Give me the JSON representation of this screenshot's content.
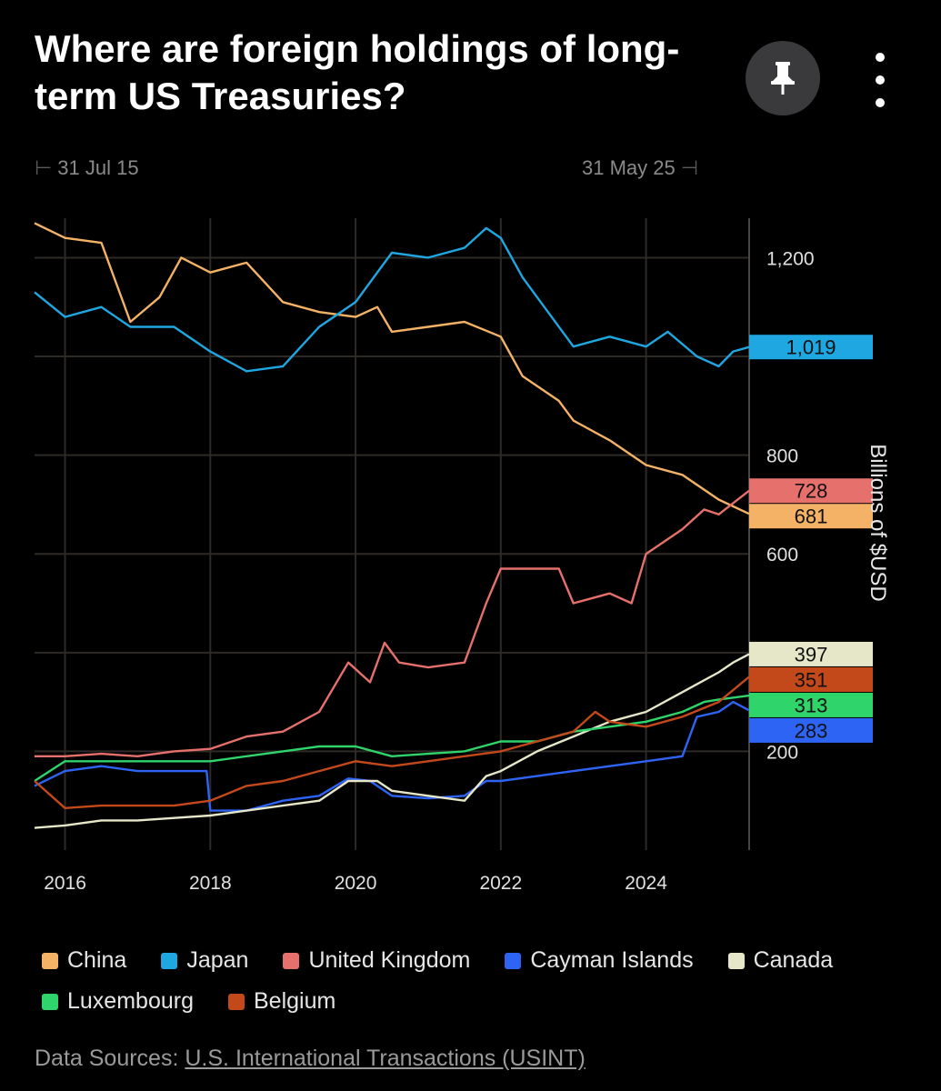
{
  "header": {
    "title": "Where are foreign holdings of long-term US Treasuries?",
    "pin_icon": "pin-icon",
    "more_icon": "more-vertical-icon"
  },
  "range": {
    "start": "31 Jul 15",
    "end": "31 May 25"
  },
  "source": {
    "label": "Data Sources:",
    "link_text": "U.S. International Transactions (USINT)"
  },
  "colors": {
    "background": "#000000",
    "grid": "#2e2a26",
    "axis_text": "#e0e0e0"
  },
  "chart_data": {
    "type": "line",
    "title": "Where are foreign holdings of long-term US Treasuries?",
    "xlabel": "",
    "ylabel": "Billions of $USD",
    "xlim": [
      2015.58,
      2025.42
    ],
    "ylim": [
      0,
      1280
    ],
    "x_ticks": [
      2016,
      2018,
      2020,
      2022,
      2024
    ],
    "x_tick_labels": [
      "2016",
      "2018",
      "2020",
      "2022",
      "2024"
    ],
    "y_ticks": [
      200,
      400,
      600,
      800,
      1000,
      1200
    ],
    "y_tick_labels": [
      "200",
      "",
      "600",
      "800",
      "",
      "1,200"
    ],
    "grid": true,
    "legend_position": "bottom",
    "series": [
      {
        "name": "China",
        "color": "#f4b266",
        "last_value": "681",
        "points": [
          [
            2015.58,
            1270
          ],
          [
            2016.0,
            1240
          ],
          [
            2016.5,
            1230
          ],
          [
            2016.9,
            1070
          ],
          [
            2017.3,
            1120
          ],
          [
            2017.6,
            1200
          ],
          [
            2018.0,
            1170
          ],
          [
            2018.5,
            1190
          ],
          [
            2019.0,
            1110
          ],
          [
            2019.5,
            1090
          ],
          [
            2020.0,
            1080
          ],
          [
            2020.3,
            1100
          ],
          [
            2020.5,
            1050
          ],
          [
            2021.0,
            1060
          ],
          [
            2021.5,
            1070
          ],
          [
            2022.0,
            1040
          ],
          [
            2022.3,
            960
          ],
          [
            2022.8,
            910
          ],
          [
            2023.0,
            870
          ],
          [
            2023.5,
            830
          ],
          [
            2024.0,
            780
          ],
          [
            2024.5,
            760
          ],
          [
            2025.0,
            710
          ],
          [
            2025.42,
            681
          ]
        ]
      },
      {
        "name": "Japan",
        "color": "#1ea7e1",
        "last_value": "1,019",
        "points": [
          [
            2015.58,
            1130
          ],
          [
            2016.0,
            1080
          ],
          [
            2016.5,
            1100
          ],
          [
            2016.9,
            1060
          ],
          [
            2017.5,
            1060
          ],
          [
            2018.0,
            1010
          ],
          [
            2018.5,
            970
          ],
          [
            2019.0,
            980
          ],
          [
            2019.5,
            1060
          ],
          [
            2020.0,
            1110
          ],
          [
            2020.2,
            1150
          ],
          [
            2020.5,
            1210
          ],
          [
            2021.0,
            1200
          ],
          [
            2021.5,
            1220
          ],
          [
            2021.8,
            1260
          ],
          [
            2022.0,
            1240
          ],
          [
            2022.3,
            1160
          ],
          [
            2022.7,
            1080
          ],
          [
            2023.0,
            1020
          ],
          [
            2023.5,
            1040
          ],
          [
            2024.0,
            1020
          ],
          [
            2024.3,
            1050
          ],
          [
            2024.7,
            1000
          ],
          [
            2025.0,
            980
          ],
          [
            2025.2,
            1010
          ],
          [
            2025.42,
            1019
          ]
        ]
      },
      {
        "name": "United Kingdom",
        "color": "#e5706c",
        "last_value": "728",
        "points": [
          [
            2015.58,
            190
          ],
          [
            2016.0,
            190
          ],
          [
            2016.5,
            195
          ],
          [
            2017.0,
            190
          ],
          [
            2017.5,
            200
          ],
          [
            2018.0,
            205
          ],
          [
            2018.5,
            230
          ],
          [
            2019.0,
            240
          ],
          [
            2019.5,
            280
          ],
          [
            2019.9,
            380
          ],
          [
            2020.2,
            340
          ],
          [
            2020.4,
            420
          ],
          [
            2020.6,
            380
          ],
          [
            2021.0,
            370
          ],
          [
            2021.5,
            380
          ],
          [
            2021.8,
            500
          ],
          [
            2022.0,
            570
          ],
          [
            2022.5,
            570
          ],
          [
            2022.8,
            570
          ],
          [
            2023.0,
            500
          ],
          [
            2023.5,
            520
          ],
          [
            2023.8,
            500
          ],
          [
            2024.0,
            600
          ],
          [
            2024.5,
            650
          ],
          [
            2024.8,
            690
          ],
          [
            2025.0,
            680
          ],
          [
            2025.42,
            728
          ]
        ]
      },
      {
        "name": "Cayman Islands",
        "color": "#2e64f3",
        "last_value": "283",
        "points": [
          [
            2015.58,
            130
          ],
          [
            2016.0,
            160
          ],
          [
            2016.5,
            170
          ],
          [
            2017.0,
            160
          ],
          [
            2017.5,
            160
          ],
          [
            2017.95,
            160
          ],
          [
            2018.0,
            80
          ],
          [
            2018.5,
            80
          ],
          [
            2019.0,
            100
          ],
          [
            2019.5,
            110
          ],
          [
            2019.9,
            145
          ],
          [
            2020.2,
            140
          ],
          [
            2020.5,
            110
          ],
          [
            2021.0,
            105
          ],
          [
            2021.5,
            110
          ],
          [
            2021.8,
            140
          ],
          [
            2022.0,
            140
          ],
          [
            2022.5,
            150
          ],
          [
            2023.0,
            160
          ],
          [
            2023.5,
            170
          ],
          [
            2024.0,
            180
          ],
          [
            2024.5,
            190
          ],
          [
            2024.7,
            270
          ],
          [
            2025.0,
            280
          ],
          [
            2025.2,
            300
          ],
          [
            2025.42,
            283
          ]
        ]
      },
      {
        "name": "Canada",
        "color": "#e6e6c8",
        "last_value": "397",
        "points": [
          [
            2015.58,
            45
          ],
          [
            2016.0,
            50
          ],
          [
            2016.5,
            60
          ],
          [
            2017.0,
            60
          ],
          [
            2017.5,
            65
          ],
          [
            2018.0,
            70
          ],
          [
            2018.5,
            80
          ],
          [
            2019.0,
            90
          ],
          [
            2019.5,
            100
          ],
          [
            2019.9,
            140
          ],
          [
            2020.3,
            140
          ],
          [
            2020.5,
            120
          ],
          [
            2021.0,
            110
          ],
          [
            2021.5,
            100
          ],
          [
            2021.8,
            150
          ],
          [
            2022.0,
            160
          ],
          [
            2022.5,
            200
          ],
          [
            2023.0,
            230
          ],
          [
            2023.5,
            260
          ],
          [
            2024.0,
            280
          ],
          [
            2024.5,
            320
          ],
          [
            2025.0,
            360
          ],
          [
            2025.2,
            380
          ],
          [
            2025.42,
            397
          ]
        ]
      },
      {
        "name": "Luxembourg",
        "color": "#2fd46b",
        "last_value": "313",
        "points": [
          [
            2015.58,
            140
          ],
          [
            2016.0,
            180
          ],
          [
            2016.5,
            180
          ],
          [
            2017.0,
            180
          ],
          [
            2017.5,
            180
          ],
          [
            2018.0,
            180
          ],
          [
            2018.5,
            190
          ],
          [
            2019.0,
            200
          ],
          [
            2019.5,
            210
          ],
          [
            2020.0,
            210
          ],
          [
            2020.5,
            190
          ],
          [
            2021.0,
            195
          ],
          [
            2021.5,
            200
          ],
          [
            2022.0,
            220
          ],
          [
            2022.5,
            220
          ],
          [
            2023.0,
            240
          ],
          [
            2023.5,
            250
          ],
          [
            2024.0,
            260
          ],
          [
            2024.5,
            280
          ],
          [
            2024.8,
            300
          ],
          [
            2025.0,
            305
          ],
          [
            2025.42,
            313
          ]
        ]
      },
      {
        "name": "Belgium",
        "color": "#c4491a",
        "last_value": "351",
        "points": [
          [
            2015.58,
            140
          ],
          [
            2016.0,
            85
          ],
          [
            2016.5,
            90
          ],
          [
            2017.0,
            90
          ],
          [
            2017.5,
            90
          ],
          [
            2018.0,
            100
          ],
          [
            2018.5,
            130
          ],
          [
            2019.0,
            140
          ],
          [
            2019.5,
            160
          ],
          [
            2020.0,
            180
          ],
          [
            2020.5,
            170
          ],
          [
            2021.0,
            180
          ],
          [
            2021.5,
            190
          ],
          [
            2022.0,
            200
          ],
          [
            2022.5,
            220
          ],
          [
            2023.0,
            240
          ],
          [
            2023.3,
            280
          ],
          [
            2023.5,
            260
          ],
          [
            2024.0,
            250
          ],
          [
            2024.5,
            270
          ],
          [
            2025.0,
            300
          ],
          [
            2025.42,
            351
          ]
        ]
      }
    ]
  }
}
